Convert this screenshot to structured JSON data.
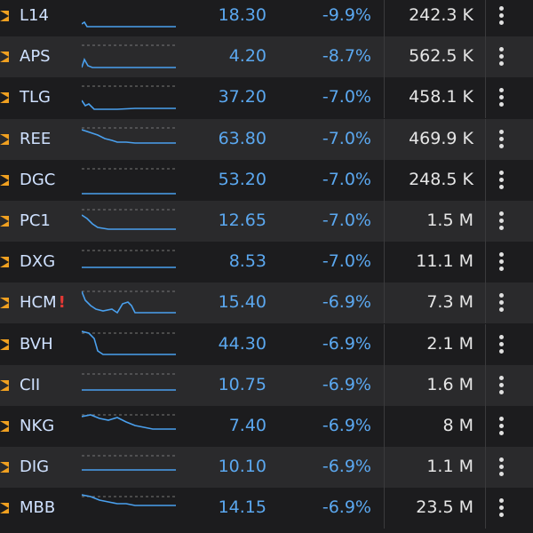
{
  "rows": [
    {
      "ticker": "L14",
      "price": "18.30",
      "change": "-9.9%",
      "volume": "242.3 K"
    },
    {
      "ticker": "APS",
      "price": "4.20",
      "change": "-8.7%",
      "volume": "562.5 K"
    },
    {
      "ticker": "TLG",
      "price": "37.20",
      "change": "-7.0%",
      "volume": "458.1 K"
    },
    {
      "ticker": "REE",
      "price": "63.80",
      "change": "-7.0%",
      "volume": "469.9 K"
    },
    {
      "ticker": "DGC",
      "price": "53.20",
      "change": "-7.0%",
      "volume": "248.5 K"
    },
    {
      "ticker": "PC1",
      "price": "12.65",
      "change": "-7.0%",
      "volume": "1.5 M"
    },
    {
      "ticker": "DXG",
      "price": "8.53",
      "change": "-7.0%",
      "volume": "11.1 M"
    },
    {
      "ticker": "HCM",
      "alert": "!",
      "price": "15.40",
      "change": "-6.9%",
      "volume": "7.3 M"
    },
    {
      "ticker": "BVH",
      "price": "44.30",
      "change": "-6.9%",
      "volume": "2.1 M"
    },
    {
      "ticker": "CII",
      "price": "10.75",
      "change": "-6.9%",
      "volume": "1.6 M"
    },
    {
      "ticker": "NKG",
      "price": "7.40",
      "change": "-6.9%",
      "volume": "8 M"
    },
    {
      "ticker": "DIG",
      "price": "10.10",
      "change": "-6.9%",
      "volume": "1.1 M"
    },
    {
      "ticker": "MBB",
      "price": "14.15",
      "change": "-6.9%",
      "volume": "23.5 M"
    }
  ]
}
